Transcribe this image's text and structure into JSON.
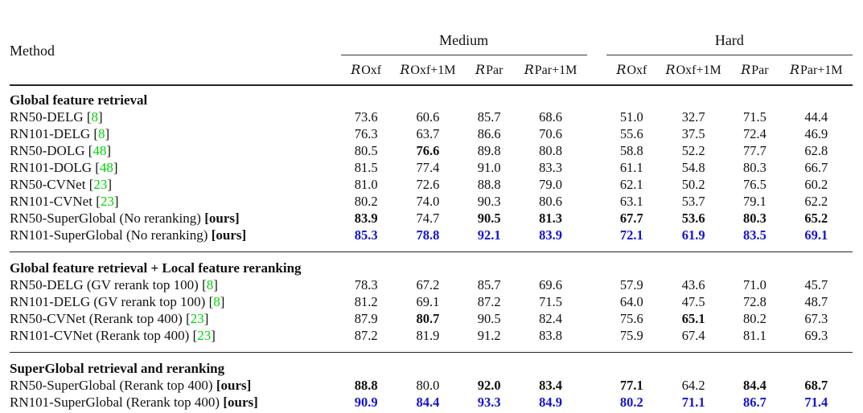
{
  "table": {
    "method_header": "Method",
    "groups": [
      {
        "label": "Medium"
      },
      {
        "label": "Hard"
      }
    ],
    "subcolumns": [
      {
        "cal": "R",
        "rest": "Oxf"
      },
      {
        "cal": "R",
        "rest": "Oxf+1M"
      },
      {
        "cal": "R",
        "rest": "Par"
      },
      {
        "cal": "R",
        "rest": "Par+1M"
      }
    ],
    "colors": {
      "citation_green": "#00d400",
      "highlight_blue": "#1414d2",
      "text_black": "#111111"
    },
    "ours_label": "[ours]",
    "sections": [
      {
        "title": "Global feature retrieval",
        "rows": [
          {
            "method": "RN50-DELG",
            "cite": "8",
            "ours": false,
            "blue": false,
            "bold": [],
            "values": [
              "73.6",
              "60.6",
              "85.7",
              "68.6",
              "51.0",
              "32.7",
              "71.5",
              "44.4"
            ]
          },
          {
            "method": "RN101-DELG",
            "cite": "8",
            "ours": false,
            "blue": false,
            "bold": [],
            "values": [
              "76.3",
              "63.7",
              "86.6",
              "70.6",
              "55.6",
              "37.5",
              "72.4",
              "46.9"
            ]
          },
          {
            "method": "RN50-DOLG",
            "cite": "48",
            "ours": false,
            "blue": false,
            "bold": [
              1
            ],
            "values": [
              "80.5",
              "76.6",
              "89.8",
              "80.8",
              "58.8",
              "52.2",
              "77.7",
              "62.8"
            ]
          },
          {
            "method": "RN101-DOLG",
            "cite": "48",
            "ours": false,
            "blue": false,
            "bold": [],
            "values": [
              "81.5",
              "77.4",
              "91.0",
              "83.3",
              "61.1",
              "54.8",
              "80.3",
              "66.7"
            ]
          },
          {
            "method": "RN50-CVNet",
            "cite": "23",
            "ours": false,
            "blue": false,
            "bold": [],
            "values": [
              "81.0",
              "72.6",
              "88.8",
              "79.0",
              "62.1",
              "50.2",
              "76.5",
              "60.2"
            ]
          },
          {
            "method": "RN101-CVNet",
            "cite": "23",
            "ours": false,
            "blue": false,
            "bold": [],
            "values": [
              "80.2",
              "74.0",
              "90.3",
              "80.6",
              "63.1",
              "53.7",
              "79.1",
              "62.2"
            ]
          },
          {
            "method": "RN50-SuperGlobal (No reranking)",
            "cite": null,
            "ours": true,
            "blue": false,
            "bold": [
              0,
              2,
              3,
              4,
              5,
              6,
              7
            ],
            "values": [
              "83.9",
              "74.7",
              "90.5",
              "81.3",
              "67.7",
              "53.6",
              "80.3",
              "65.2"
            ]
          },
          {
            "method": "RN101-SuperGlobal (No reranking)",
            "cite": null,
            "ours": true,
            "blue": true,
            "bold": [],
            "values": [
              "85.3",
              "78.8",
              "92.1",
              "83.9",
              "72.1",
              "61.9",
              "83.5",
              "69.1"
            ]
          }
        ]
      },
      {
        "title": "Global feature retrieval + Local feature reranking",
        "rows": [
          {
            "method": "RN50-DELG (GV rerank top 100)",
            "cite": "8",
            "ours": false,
            "blue": false,
            "bold": [],
            "values": [
              "78.3",
              "67.2",
              "85.7",
              "69.6",
              "57.9",
              "43.6",
              "71.0",
              "45.7"
            ]
          },
          {
            "method": "RN101-DELG (GV rerank top 100)",
            "cite": "8",
            "ours": false,
            "blue": false,
            "bold": [],
            "values": [
              "81.2",
              "69.1",
              "87.2",
              "71.5",
              "64.0",
              "47.5",
              "72.8",
              "48.7"
            ]
          },
          {
            "method": "RN50-CVNet (Rerank top 400)",
            "cite": "23",
            "ours": false,
            "blue": false,
            "bold": [
              1,
              5
            ],
            "values": [
              "87.9",
              "80.7",
              "90.5",
              "82.4",
              "75.6",
              "65.1",
              "80.2",
              "67.3"
            ]
          },
          {
            "method": "RN101-CVNet (Rerank top 400)",
            "cite": "23",
            "ours": false,
            "blue": false,
            "bold": [],
            "values": [
              "87.2",
              "81.9",
              "91.2",
              "83.8",
              "75.9",
              "67.4",
              "81.1",
              "69.3"
            ]
          }
        ]
      },
      {
        "title": "SuperGlobal retrieval and reranking",
        "rows": [
          {
            "method": "RN50-SuperGlobal (Rerank top 400)",
            "cite": null,
            "ours": true,
            "blue": false,
            "bold": [
              0,
              2,
              3,
              4,
              6,
              7
            ],
            "values": [
              "88.8",
              "80.0",
              "92.0",
              "83.4",
              "77.1",
              "64.2",
              "84.4",
              "68.7"
            ]
          },
          {
            "method": "RN101-SuperGlobal (Rerank top 400)",
            "cite": null,
            "ours": true,
            "blue": true,
            "bold": [],
            "values": [
              "90.9",
              "84.4",
              "93.3",
              "84.9",
              "80.2",
              "71.1",
              "86.7",
              "71.4"
            ]
          }
        ]
      }
    ]
  }
}
